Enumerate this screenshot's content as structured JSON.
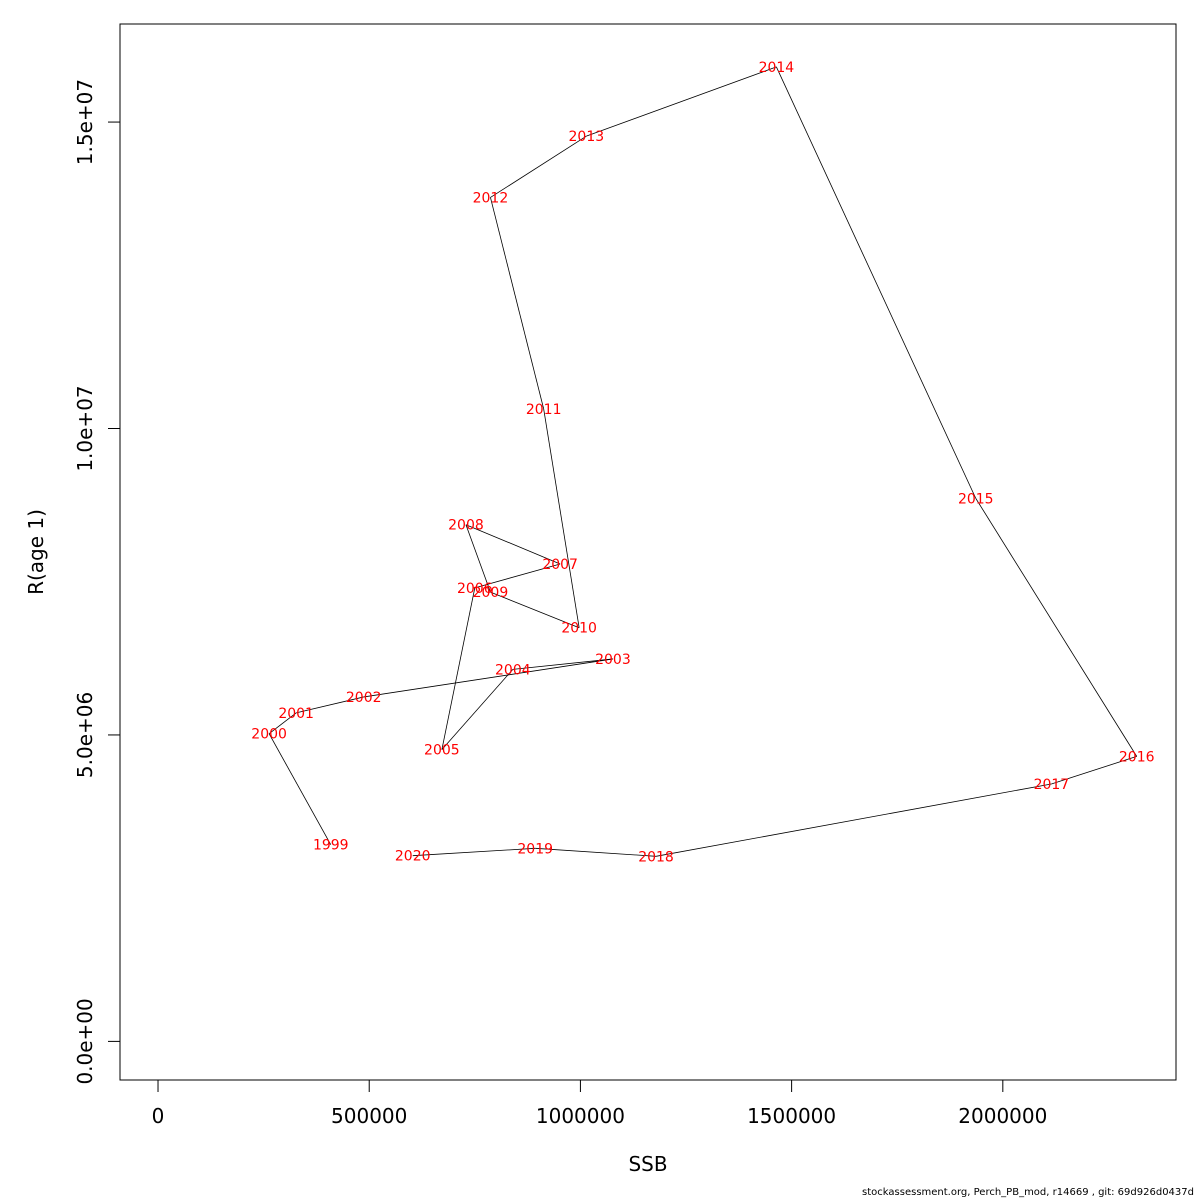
{
  "chart_data": {
    "type": "line",
    "title": "",
    "xlabel": "SSB",
    "ylabel": "R(age 1)",
    "xlim": [
      -90000,
      2410000
    ],
    "ylim": [
      -630000,
      16600000
    ],
    "x_ticks": [
      {
        "value": 0,
        "label": "0"
      },
      {
        "value": 500000,
        "label": "500000"
      },
      {
        "value": 1000000,
        "label": "1000000"
      },
      {
        "value": 1500000,
        "label": "1500000"
      },
      {
        "value": 2000000,
        "label": "2000000"
      }
    ],
    "y_ticks": [
      {
        "value": 0,
        "label": "0.0e+00"
      },
      {
        "value": 5000000,
        "label": "5.0e+06"
      },
      {
        "value": 10000000,
        "label": "1.0e+07"
      },
      {
        "value": 15000000,
        "label": "1.5e+07"
      }
    ],
    "grid": false,
    "line_color": "#000000",
    "label_color": "#ff0000",
    "points": [
      {
        "label": "1999",
        "x": 409000,
        "y": 3210000
      },
      {
        "label": "2000",
        "x": 263000,
        "y": 5020000
      },
      {
        "label": "2001",
        "x": 327000,
        "y": 5360000
      },
      {
        "label": "2002",
        "x": 487000,
        "y": 5620000
      },
      {
        "label": "2003",
        "x": 1077000,
        "y": 6240000
      },
      {
        "label": "2004",
        "x": 840000,
        "y": 6070000
      },
      {
        "label": "2005",
        "x": 672000,
        "y": 4760000
      },
      {
        "label": "2006",
        "x": 750000,
        "y": 7400000
      },
      {
        "label": "2007",
        "x": 952000,
        "y": 7790000
      },
      {
        "label": "2008",
        "x": 729000,
        "y": 8430000
      },
      {
        "label": "2009",
        "x": 787000,
        "y": 7330000
      },
      {
        "label": "2010",
        "x": 997000,
        "y": 6750000
      },
      {
        "label": "2011",
        "x": 913000,
        "y": 10320000
      },
      {
        "label": "2012",
        "x": 787000,
        "y": 13770000
      },
      {
        "label": "2013",
        "x": 1014000,
        "y": 14770000
      },
      {
        "label": "2014",
        "x": 1464000,
        "y": 15900000
      },
      {
        "label": "2015",
        "x": 1936000,
        "y": 8860000
      },
      {
        "label": "2016",
        "x": 2317000,
        "y": 4650000
      },
      {
        "label": "2017",
        "x": 2115000,
        "y": 4200000
      },
      {
        "label": "2018",
        "x": 1179000,
        "y": 3020000
      },
      {
        "label": "2019",
        "x": 893000,
        "y": 3150000
      },
      {
        "label": "2020",
        "x": 603000,
        "y": 3030000
      }
    ]
  },
  "footer": "stockassessment.org, Perch_PB_mod, r14669 , git: 69d926d0437d"
}
